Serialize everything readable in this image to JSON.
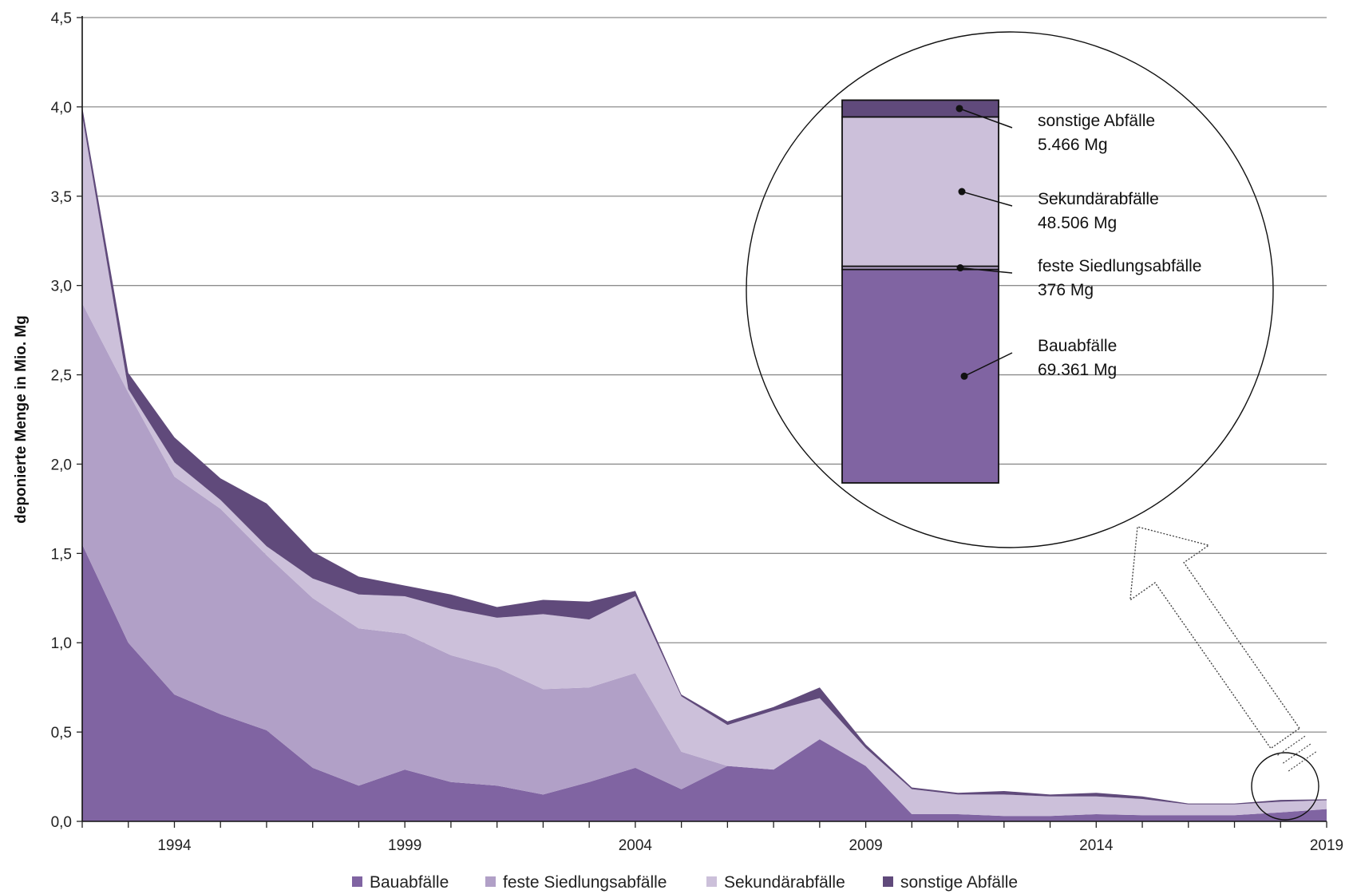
{
  "chart_data": {
    "type": "area",
    "stacked": true,
    "ylabel": "deponierte Menge in Mio. Mg",
    "xlabel": "",
    "ylim": [
      0,
      4.5
    ],
    "xlim": [
      1992,
      2019
    ],
    "yticks": [
      "0,0",
      "0,5",
      "1,0",
      "1,5",
      "2,0",
      "2,5",
      "3,0",
      "3,5",
      "4,0",
      "4,5"
    ],
    "xtick_labels": [
      "1994",
      "1999",
      "2004",
      "2009",
      "2014",
      "2019"
    ],
    "grid": "horizontal",
    "legend_position": "bottom",
    "x": [
      1992,
      1993,
      1994,
      1995,
      1996,
      1997,
      1998,
      1999,
      2000,
      2001,
      2002,
      2003,
      2004,
      2005,
      2006,
      2007,
      2008,
      2009,
      2010,
      2011,
      2012,
      2013,
      2014,
      2015,
      2016,
      2017,
      2018,
      2019
    ],
    "series": [
      {
        "name": "Bauabfälle",
        "color": "#8064a2",
        "values": [
          1.55,
          1.0,
          0.71,
          0.6,
          0.51,
          0.3,
          0.2,
          0.29,
          0.22,
          0.2,
          0.15,
          0.22,
          0.3,
          0.18,
          0.31,
          0.29,
          0.46,
          0.31,
          0.04,
          0.04,
          0.03,
          0.03,
          0.04,
          0.035,
          0.035,
          0.035,
          0.05,
          0.069
        ]
      },
      {
        "name": "feste Siedlungsabfälle",
        "color": "#b1a0c7",
        "values": [
          1.35,
          1.4,
          1.22,
          1.15,
          0.98,
          0.95,
          0.88,
          0.76,
          0.71,
          0.66,
          0.59,
          0.53,
          0.53,
          0.21,
          0.0,
          0.0,
          0.0,
          0.0,
          0.0,
          0.0,
          0.0,
          0.0,
          0.0,
          0.0,
          0.0,
          0.0,
          0.0,
          0.0004
        ]
      },
      {
        "name": "Sekundärabfälle",
        "color": "#ccc0da",
        "values": [
          1.05,
          0.02,
          0.08,
          0.05,
          0.05,
          0.11,
          0.19,
          0.21,
          0.26,
          0.28,
          0.42,
          0.38,
          0.43,
          0.31,
          0.23,
          0.33,
          0.23,
          0.1,
          0.14,
          0.11,
          0.12,
          0.11,
          0.1,
          0.09,
          0.06,
          0.06,
          0.06,
          0.049
        ]
      },
      {
        "name": "sonstige Abfälle",
        "color": "#604a7b",
        "values": [
          0.05,
          0.09,
          0.14,
          0.12,
          0.24,
          0.15,
          0.1,
          0.06,
          0.08,
          0.06,
          0.08,
          0.1,
          0.03,
          0.01,
          0.02,
          0.02,
          0.06,
          0.02,
          0.01,
          0.01,
          0.02,
          0.01,
          0.02,
          0.015,
          0.005,
          0.005,
          0.01,
          0.005
        ]
      }
    ],
    "inset": {
      "year": 2019,
      "items": [
        {
          "name": "sonstige  Abfälle",
          "value": "5.466 Mg",
          "color": "#604a7b"
        },
        {
          "name": "Sekundärabfälle",
          "value": "48.506 Mg",
          "color": "#ccc0da"
        },
        {
          "name": "feste  Siedlungsabfälle",
          "value": "376 Mg",
          "color": "#b1a0c7"
        },
        {
          "name": "Bauabfälle",
          "value": "69.361 Mg",
          "color": "#8064a2"
        }
      ]
    }
  }
}
